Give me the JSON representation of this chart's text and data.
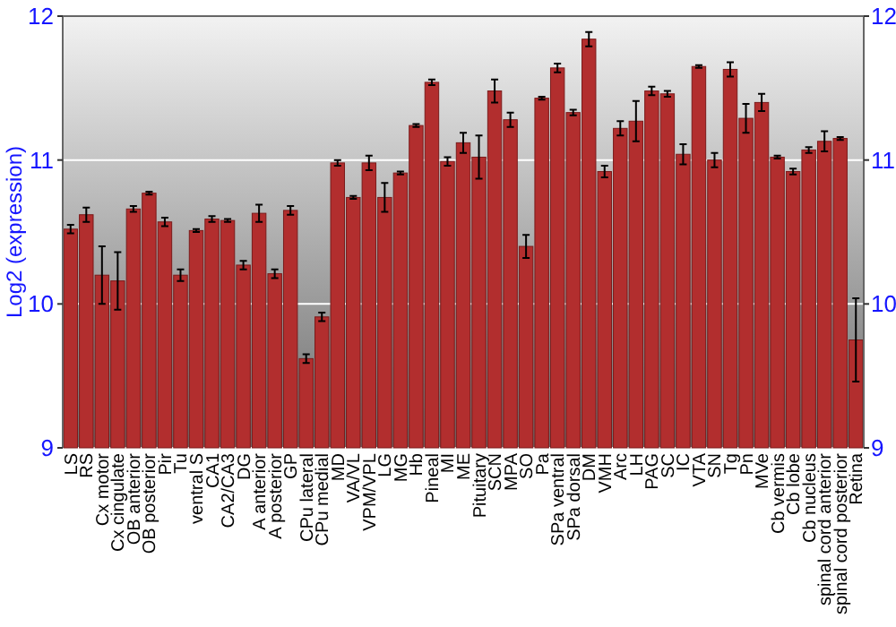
{
  "chart_data": {
    "type": "bar",
    "ylabel": "Log2 (expression)",
    "categories": [
      "LS",
      "RS",
      "Cx motor",
      "Cx cingulate",
      "OB anterior",
      "OB posterior",
      "Pir",
      "Tu",
      "ventral S",
      "CA1",
      "CA2/CA3",
      "DG",
      "A anterior",
      "A posterior",
      "GP",
      "CPu lateral",
      "CPu medial",
      "MD",
      "VA/VL",
      "VPM/VPL",
      "LG",
      "MG",
      "Hb",
      "Pineal",
      "MI",
      "ME",
      "Pituitary",
      "SCN",
      "MPA",
      "SO",
      "Pa",
      "SPa ventral",
      "SPa dorsal",
      "DM",
      "VMH",
      "Arc",
      "LH",
      "PAG",
      "SC",
      "IC",
      "VTA",
      "SN",
      "Tg",
      "Pn",
      "MVe",
      "Cb vermis",
      "Cb lobe",
      "Cb nucleus",
      "spinal cord anterior",
      "spinal cord posterior",
      "Retina"
    ],
    "values": [
      10.52,
      10.62,
      10.2,
      10.16,
      10.66,
      10.77,
      10.57,
      10.2,
      10.51,
      10.59,
      10.58,
      10.27,
      10.63,
      10.21,
      10.65,
      9.62,
      9.91,
      10.98,
      10.74,
      10.98,
      10.74,
      10.91,
      11.24,
      11.54,
      10.99,
      11.12,
      11.02,
      11.48,
      11.28,
      10.4,
      11.43,
      11.64,
      11.33,
      11.84,
      10.92,
      11.22,
      11.27,
      11.48,
      11.46,
      11.04,
      11.65,
      11.0,
      11.63,
      11.29,
      11.4,
      11.02,
      10.92,
      11.07,
      11.13,
      11.15,
      9.75
    ],
    "errors": [
      0.03,
      0.05,
      0.2,
      0.2,
      0.02,
      0.01,
      0.03,
      0.04,
      0.01,
      0.02,
      0.01,
      0.03,
      0.06,
      0.03,
      0.03,
      0.03,
      0.03,
      0.02,
      0.01,
      0.05,
      0.1,
      0.01,
      0.01,
      0.02,
      0.03,
      0.07,
      0.15,
      0.08,
      0.05,
      0.08,
      0.01,
      0.03,
      0.02,
      0.05,
      0.04,
      0.05,
      0.14,
      0.03,
      0.02,
      0.07,
      0.01,
      0.05,
      0.05,
      0.1,
      0.06,
      0.01,
      0.02,
      0.02,
      0.07,
      0.01,
      0.29
    ],
    "color": "#b22e2e",
    "ylim": [
      9,
      12
    ],
    "yticks": [
      9,
      10,
      11,
      12
    ],
    "y2lim": [
      9,
      12
    ],
    "y2ticks": [
      9,
      10,
      11,
      12
    ],
    "grid": "y"
  }
}
